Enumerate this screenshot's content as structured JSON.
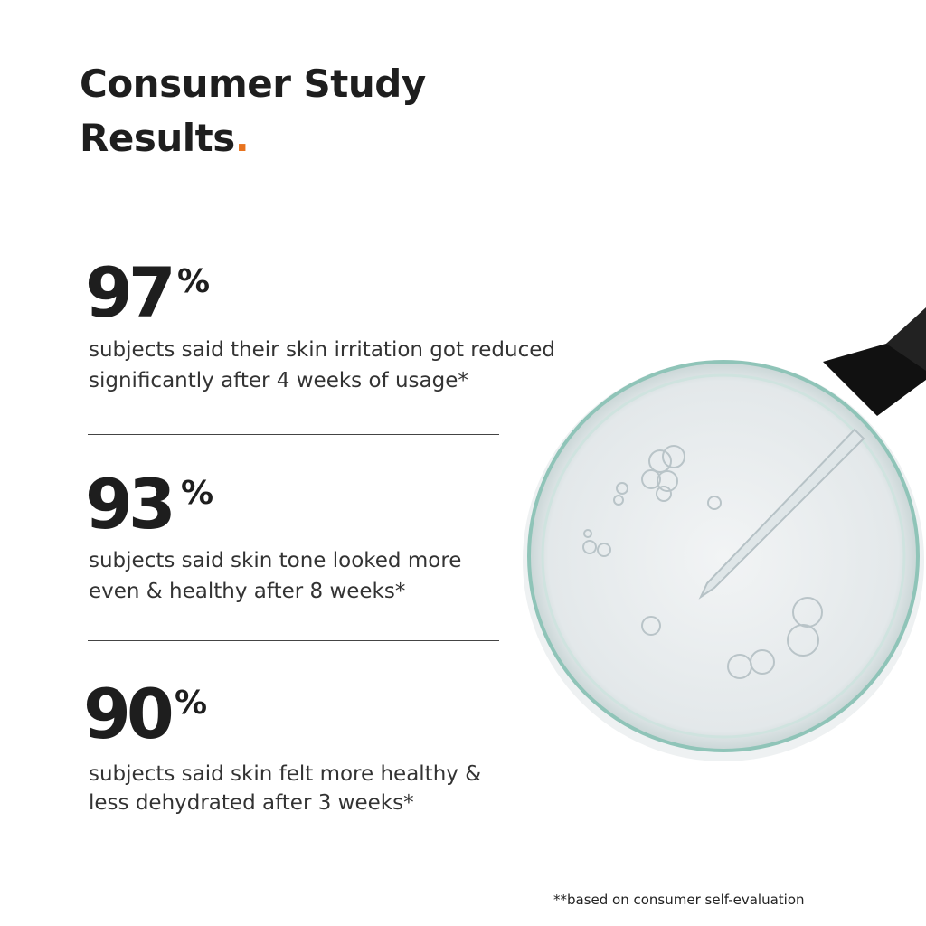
{
  "header": {
    "title_lines": [
      "Consumer Study",
      "Results"
    ],
    "title_dot": "."
  },
  "stats": [
    {
      "value": 97,
      "unit": "%",
      "description": [
        "subjects said their skin irritation got reduced",
        "significantly after 4 weeks of usage*"
      ]
    },
    {
      "value": 93,
      "unit": "%",
      "description": [
        "subjects said skin tone looked more",
        "even & healthy after 8 weeks*"
      ]
    },
    {
      "value": 90,
      "unit": "%",
      "description": [
        "subjects said skin felt more healthy &",
        "less dehydrated after 3 weeks*"
      ]
    }
  ],
  "footnote": "**based on consumer self-evaluation"
}
